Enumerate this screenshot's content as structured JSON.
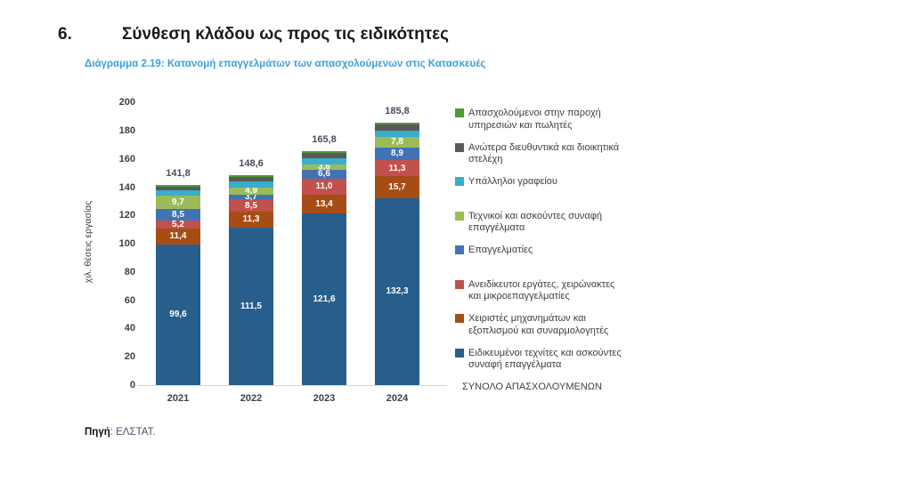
{
  "page": {
    "heading_number": "6.",
    "heading": "Σύνθεση κλάδου ως προς τις ειδικότητες",
    "source_label": "Πηγή",
    "source_text": ": ΕΛΣΤΑΤ."
  },
  "colors": {
    "title_blue": "#3e9ed9",
    "axis_text": "#3f3f3f",
    "total_label": "#474b5c",
    "source_link": "#44546a"
  },
  "chart_data": {
    "type": "bar",
    "stacked": true,
    "title": "Διάγραμμα 2.19: Κατανομή επαγγελμάτων των απασχολούμενων στις Κατασκευές",
    "categories": [
      "2021",
      "2022",
      "2023",
      "2024"
    ],
    "xlabel": "",
    "ylabel": "χιλ. θέσεις εργασίας",
    "ylim": [
      0,
      200
    ],
    "ytick_step": 20,
    "grid": false,
    "legend_position": "right",
    "decimal_separator": ",",
    "series_bottom_to_top": [
      {
        "name": "Ειδικευμένοι τεχνίτες και ασκούντες συναφή επαγγέλματα",
        "color": "#275e8c",
        "values": [
          99.6,
          111.5,
          121.6,
          132.3
        ],
        "data_labels": [
          "99,6",
          "111,5",
          "121,6",
          "132,3"
        ],
        "values_estimated": false
      },
      {
        "name": "Χειριστές μηχανημάτων και εξοπλισμού και συναρμολογητές",
        "color": "#a64d15",
        "values": [
          11.4,
          11.3,
          13.4,
          15.7
        ],
        "data_labels": [
          "11,4",
          "11,3",
          "13,4",
          "15,7"
        ],
        "values_estimated": false
      },
      {
        "name": "Ανειδίκευτοι εργάτες, χειρώνακτες και μικροεπαγγελματίες",
        "color": "#c2504c",
        "values": [
          5.2,
          8.5,
          11.0,
          11.3
        ],
        "data_labels": [
          "5,2",
          "8,5",
          "11,0",
          "11,3"
        ],
        "values_estimated": false
      },
      {
        "name": "Επαγγελματίες",
        "color": "#4173b4",
        "values": [
          8.5,
          3.7,
          6.6,
          8.9
        ],
        "data_labels": [
          "8,5",
          "3,7",
          "6,6",
          "8,9"
        ],
        "values_estimated": false
      },
      {
        "name": "Τεχνικοί και ασκούντες συναφή επαγγέλματα",
        "color": "#9bbb59",
        "values": [
          9.7,
          4.9,
          3.6,
          7.8
        ],
        "data_labels": [
          "9,7",
          "4,9",
          "3,6",
          "7,8"
        ],
        "values_estimated": false
      },
      {
        "name": "Υπάλληλοι γραφείου",
        "color": "#38aecc",
        "values": [
          3.8,
          4.0,
          4.3,
          4.3
        ],
        "data_labels": [
          "",
          "",
          "",
          ""
        ],
        "values_estimated": true
      },
      {
        "name": "Ανώτερα διευθυντικά και διοικητικά στελέχη",
        "color": "#595959",
        "values": [
          2.4,
          3.5,
          4.0,
          4.1
        ],
        "data_labels": [
          "",
          "",
          "",
          ""
        ],
        "values_estimated": true
      },
      {
        "name": "Απασχολούμενοι στην παροχή υπηρεσιών και πωλητές",
        "color": "#4e9b31",
        "values": [
          1.2,
          1.2,
          1.3,
          1.4
        ],
        "data_labels": [
          "",
          "",
          "",
          ""
        ],
        "values_estimated": true
      }
    ],
    "totals": {
      "name": "ΣΥΝΟΛΟ ΑΠΑΣΧΟΛΟΥΜΕΝΩΝ",
      "values": [
        141.8,
        148.6,
        165.8,
        185.8
      ],
      "data_labels": [
        "141,8",
        "148,6",
        "165,8",
        "185,8"
      ]
    },
    "legend": [
      {
        "label": "Απασχολούμενοι στην παροχή\nυπηρεσιών και πωλητές",
        "color": "#4e9b31"
      },
      {
        "label": "Ανώτερα διευθυντικά και διοικητικά\nστελέχη",
        "color": "#595959"
      },
      {
        "label": "Υπάλληλοι γραφείου",
        "color": "#38aecc"
      },
      {
        "label": "Τεχνικοί και ασκούντες συναφή\nεπαγγέλματα",
        "color": "#9bbb59"
      },
      {
        "label": "Επαγγελματίες",
        "color": "#4173b4"
      },
      {
        "label": "Ανειδίκευτοι εργάτες, χειρώνακτες\nκαι μικροεπαγγελματίες",
        "color": "#c2504c"
      },
      {
        "label": "Χειριστές μηχανημάτων και\nεξοπλισμού και συναρμολογητές",
        "color": "#a64d15"
      },
      {
        "label": "Ειδικευμένοι τεχνίτες και ασκούντες\nσυναφή επαγγέλματα",
        "color": "#275e8c"
      },
      {
        "label": "ΣΥΝΟΛΟ ΑΠΑΣΧΟΛΟΥΜΕΝΩΝ",
        "color": null
      }
    ]
  }
}
